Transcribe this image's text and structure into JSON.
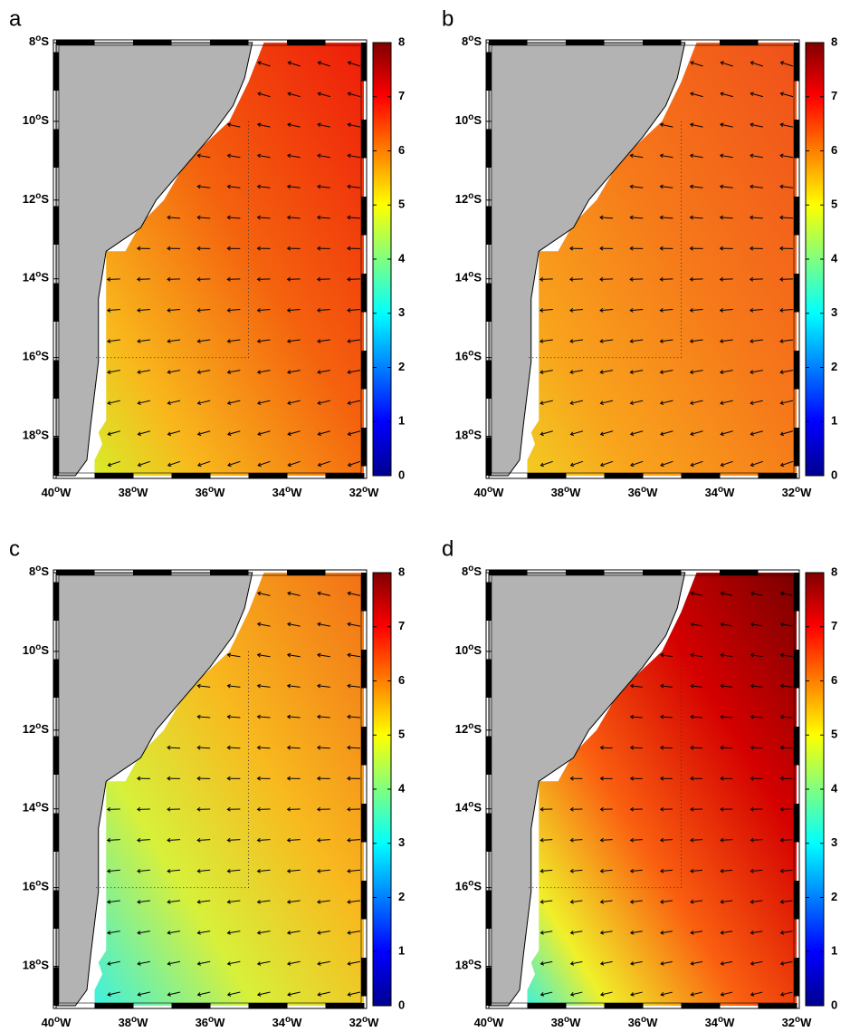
{
  "chart_data": [
    {
      "type": "map",
      "title": "a",
      "xlim": [
        -40,
        -32
      ],
      "ylim": [
        -19,
        -8
      ],
      "xticks": [
        {
          "value": -40,
          "label": "40oW"
        },
        {
          "value": -38,
          "label": "38oW"
        },
        {
          "value": -36,
          "label": "36oW"
        },
        {
          "value": -34,
          "label": "34oW"
        },
        {
          "value": -32,
          "label": "32oW"
        }
      ],
      "yticks": [
        {
          "value": -8,
          "label": "8oS"
        },
        {
          "value": -10,
          "label": "10oS"
        },
        {
          "value": -12,
          "label": "12oS"
        },
        {
          "value": -14,
          "label": "14oS"
        },
        {
          "value": -16,
          "label": "16oS"
        },
        {
          "value": -18,
          "label": "18oS"
        }
      ],
      "clim": [
        0,
        8
      ],
      "cticks": [
        0,
        1,
        2,
        3,
        4,
        5,
        6,
        7,
        8
      ]
    },
    {
      "type": "map",
      "title": "b",
      "xlim": [
        -40,
        -32
      ],
      "ylim": [
        -19,
        -8
      ],
      "xticks": [
        {
          "value": -40,
          "label": "40oW"
        },
        {
          "value": -38,
          "label": "38oW"
        },
        {
          "value": -36,
          "label": "36oW"
        },
        {
          "value": -34,
          "label": "34oW"
        },
        {
          "value": -32,
          "label": "32oW"
        }
      ],
      "yticks": [
        {
          "value": -8,
          "label": "8oS"
        },
        {
          "value": -10,
          "label": "10oS"
        },
        {
          "value": -12,
          "label": "12oS"
        },
        {
          "value": -14,
          "label": "14oS"
        },
        {
          "value": -16,
          "label": "16oS"
        },
        {
          "value": -18,
          "label": "18oS"
        }
      ],
      "clim": [
        0,
        8
      ],
      "cticks": [
        0,
        1,
        2,
        3,
        4,
        5,
        6,
        7,
        8
      ]
    },
    {
      "type": "map",
      "title": "c",
      "xlim": [
        -40,
        -32
      ],
      "ylim": [
        -19,
        -8
      ],
      "xticks": [
        {
          "value": -40,
          "label": "40oW"
        },
        {
          "value": -38,
          "label": "38oW"
        },
        {
          "value": -36,
          "label": "36oW"
        },
        {
          "value": -34,
          "label": "34oW"
        },
        {
          "value": -32,
          "label": "32oW"
        }
      ],
      "yticks": [
        {
          "value": -8,
          "label": "8oS"
        },
        {
          "value": -10,
          "label": "10oS"
        },
        {
          "value": -12,
          "label": "12oS"
        },
        {
          "value": -14,
          "label": "14oS"
        },
        {
          "value": -16,
          "label": "16oS"
        },
        {
          "value": -18,
          "label": "18oS"
        }
      ],
      "clim": [
        0,
        8
      ],
      "cticks": [
        0,
        1,
        2,
        3,
        4,
        5,
        6,
        7,
        8
      ]
    },
    {
      "type": "map",
      "title": "d",
      "xlim": [
        -40,
        -32
      ],
      "ylim": [
        -19,
        -8
      ],
      "xticks": [
        {
          "value": -40,
          "label": "40oW"
        },
        {
          "value": -38,
          "label": "38oW"
        },
        {
          "value": -36,
          "label": "36oW"
        },
        {
          "value": -34,
          "label": "34oW"
        },
        {
          "value": -32,
          "label": "32oW"
        }
      ],
      "yticks": [
        {
          "value": -8,
          "label": "8oS"
        },
        {
          "value": -10,
          "label": "10oS"
        },
        {
          "value": -12,
          "label": "12oS"
        },
        {
          "value": -14,
          "label": "14oS"
        },
        {
          "value": -16,
          "label": "16oS"
        },
        {
          "value": -18,
          "label": "18oS"
        }
      ],
      "clim": [
        0,
        8
      ],
      "cticks": [
        0,
        1,
        2,
        3,
        4,
        5,
        6,
        7,
        8
      ]
    }
  ]
}
